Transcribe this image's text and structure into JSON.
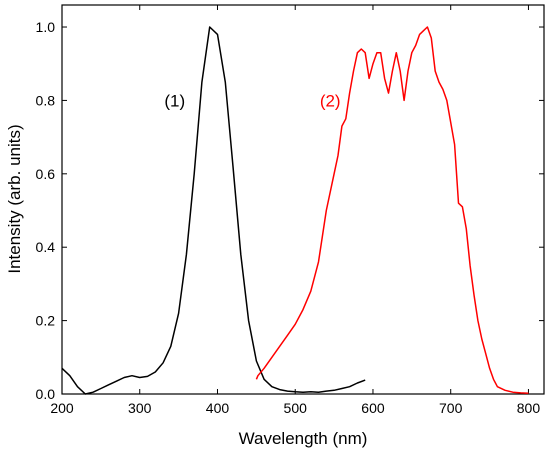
{
  "chart_data": {
    "type": "line",
    "title": "",
    "xlabel": "Wavelength (nm)",
    "ylabel": "Intensity (arb. units)",
    "xlim": [
      200,
      820
    ],
    "ylim": [
      0,
      1.06
    ],
    "x_ticks": [
      200,
      300,
      400,
      500,
      600,
      700,
      800
    ],
    "x_tick_labels": [
      "200",
      "300",
      "400",
      "500",
      "600",
      "700",
      "800"
    ],
    "y_ticks": [
      0,
      0.2,
      0.4,
      0.6,
      0.8,
      1.0
    ],
    "y_tick_labels": [
      "0.0",
      "0.2",
      "0.4",
      "0.6",
      "0.8",
      "1.0"
    ],
    "grid": false,
    "series": [
      {
        "name": "(1)",
        "color": "#000000",
        "points": [
          [
            200,
            0.07
          ],
          [
            210,
            0.05
          ],
          [
            220,
            0.02
          ],
          [
            230,
            0.0
          ],
          [
            240,
            0.005
          ],
          [
            250,
            0.015
          ],
          [
            260,
            0.025
          ],
          [
            270,
            0.035
          ],
          [
            280,
            0.045
          ],
          [
            290,
            0.05
          ],
          [
            300,
            0.045
          ],
          [
            310,
            0.048
          ],
          [
            320,
            0.06
          ],
          [
            330,
            0.085
          ],
          [
            340,
            0.13
          ],
          [
            350,
            0.22
          ],
          [
            360,
            0.38
          ],
          [
            370,
            0.6
          ],
          [
            380,
            0.85
          ],
          [
            390,
            1.0
          ],
          [
            400,
            0.98
          ],
          [
            410,
            0.85
          ],
          [
            420,
            0.62
          ],
          [
            430,
            0.38
          ],
          [
            440,
            0.2
          ],
          [
            450,
            0.09
          ],
          [
            460,
            0.04
          ],
          [
            470,
            0.02
          ],
          [
            480,
            0.012
          ],
          [
            490,
            0.008
          ],
          [
            500,
            0.006
          ],
          [
            510,
            0.005
          ],
          [
            520,
            0.006
          ],
          [
            530,
            0.005
          ],
          [
            540,
            0.008
          ],
          [
            550,
            0.01
          ],
          [
            560,
            0.015
          ],
          [
            570,
            0.02
          ],
          [
            580,
            0.03
          ],
          [
            590,
            0.038
          ]
        ]
      },
      {
        "name": "(2)",
        "color": "#ff0000",
        "points": [
          [
            450,
            0.04
          ],
          [
            452,
            0.05
          ],
          [
            460,
            0.07
          ],
          [
            470,
            0.1
          ],
          [
            480,
            0.13
          ],
          [
            490,
            0.16
          ],
          [
            500,
            0.19
          ],
          [
            510,
            0.23
          ],
          [
            520,
            0.28
          ],
          [
            530,
            0.36
          ],
          [
            540,
            0.5
          ],
          [
            550,
            0.6
          ],
          [
            555,
            0.65
          ],
          [
            560,
            0.73
          ],
          [
            565,
            0.75
          ],
          [
            570,
            0.82
          ],
          [
            575,
            0.88
          ],
          [
            580,
            0.93
          ],
          [
            585,
            0.94
          ],
          [
            590,
            0.93
          ],
          [
            595,
            0.86
          ],
          [
            600,
            0.9
          ],
          [
            605,
            0.93
          ],
          [
            610,
            0.93
          ],
          [
            615,
            0.86
          ],
          [
            620,
            0.82
          ],
          [
            625,
            0.88
          ],
          [
            630,
            0.93
          ],
          [
            635,
            0.88
          ],
          [
            640,
            0.8
          ],
          [
            645,
            0.88
          ],
          [
            650,
            0.93
          ],
          [
            655,
            0.95
          ],
          [
            660,
            0.98
          ],
          [
            665,
            0.99
          ],
          [
            670,
            1.0
          ],
          [
            675,
            0.97
          ],
          [
            680,
            0.88
          ],
          [
            685,
            0.85
          ],
          [
            690,
            0.83
          ],
          [
            695,
            0.8
          ],
          [
            700,
            0.74
          ],
          [
            705,
            0.68
          ],
          [
            710,
            0.52
          ],
          [
            715,
            0.51
          ],
          [
            720,
            0.45
          ],
          [
            725,
            0.35
          ],
          [
            730,
            0.27
          ],
          [
            735,
            0.2
          ],
          [
            740,
            0.15
          ],
          [
            745,
            0.11
          ],
          [
            750,
            0.07
          ],
          [
            755,
            0.04
          ],
          [
            760,
            0.02
          ],
          [
            770,
            0.01
          ],
          [
            780,
            0.005
          ],
          [
            790,
            0.003
          ],
          [
            800,
            0.002
          ]
        ]
      }
    ],
    "annotations": [
      {
        "text": "(1)",
        "x": 345,
        "y": 0.8,
        "color": "#000000"
      },
      {
        "text": "(2)",
        "x": 545,
        "y": 0.8,
        "color": "#ff0000"
      }
    ]
  }
}
